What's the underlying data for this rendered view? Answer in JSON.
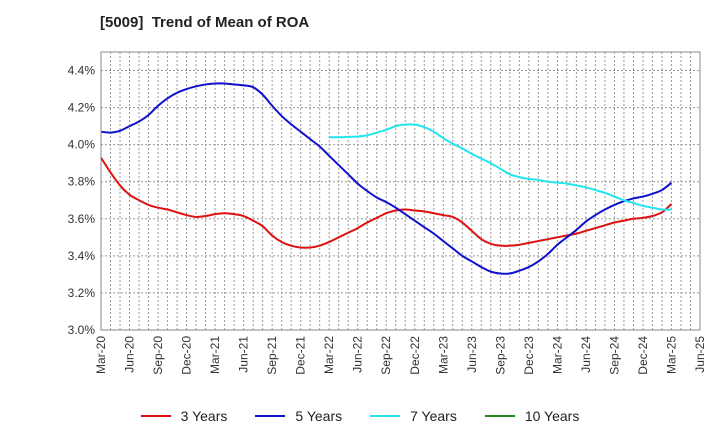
{
  "chart_data": {
    "type": "line",
    "title": "[5009]  Trend of Mean of ROA",
    "y_ticks": [
      "3.0%",
      "3.2%",
      "3.4%",
      "3.6%",
      "3.8%",
      "4.0%",
      "4.2%",
      "4.4%"
    ],
    "ylim": [
      3.0,
      4.5
    ],
    "x_ticks": [
      "Mar-20",
      "Jun-20",
      "Sep-20",
      "Dec-20",
      "Mar-21",
      "Jun-21",
      "Sep-21",
      "Dec-21",
      "Mar-22",
      "Jun-22",
      "Sep-22",
      "Dec-22",
      "Mar-23",
      "Jun-23",
      "Sep-23",
      "Dec-23",
      "Mar-24",
      "Jun-24",
      "Sep-24",
      "Dec-24",
      "Mar-25",
      "Jun-25"
    ],
    "grid": true,
    "legend_position": "bottom",
    "series": [
      {
        "name": "3 Years",
        "color": "#dd1111",
        "x": [
          "Mar-20",
          "Apr-20",
          "May-20",
          "Jun-20",
          "Jul-20",
          "Aug-20",
          "Sep-20",
          "Oct-20",
          "Nov-20",
          "Dec-20",
          "Jan-21",
          "Feb-21",
          "Mar-21",
          "Apr-21",
          "May-21",
          "Jun-21",
          "Jul-21",
          "Aug-21",
          "Sep-21",
          "Oct-21",
          "Nov-21",
          "Dec-21",
          "Jan-22",
          "Feb-22",
          "Mar-22",
          "Apr-22",
          "May-22",
          "Jun-22",
          "Jul-22",
          "Aug-22",
          "Sep-22",
          "Oct-22",
          "Nov-22",
          "Dec-22",
          "Jan-23",
          "Feb-23",
          "Mar-23",
          "Apr-23",
          "May-23",
          "Jun-23",
          "Jul-23",
          "Aug-23",
          "Sep-23",
          "Oct-23",
          "Nov-23",
          "Dec-23",
          "Jan-24",
          "Feb-24",
          "Mar-24",
          "Apr-24",
          "May-24",
          "Jun-24",
          "Jul-24",
          "Aug-24",
          "Sep-24",
          "Oct-24",
          "Nov-24",
          "Dec-24",
          "Jan-25",
          "Feb-25",
          "Mar-25"
        ],
        "values": [
          3.93,
          3.85,
          3.78,
          3.73,
          3.7,
          3.675,
          3.66,
          3.65,
          3.635,
          3.62,
          3.61,
          3.615,
          3.625,
          3.63,
          3.625,
          3.615,
          3.59,
          3.56,
          3.51,
          3.475,
          3.455,
          3.445,
          3.445,
          3.455,
          3.475,
          3.5,
          3.525,
          3.55,
          3.58,
          3.605,
          3.63,
          3.645,
          3.65,
          3.645,
          3.64,
          3.63,
          3.62,
          3.61,
          3.58,
          3.535,
          3.49,
          3.465,
          3.455,
          3.455,
          3.46,
          3.47,
          3.48,
          3.49,
          3.5,
          3.51,
          3.52,
          3.535,
          3.55,
          3.565,
          3.58,
          3.59,
          3.6,
          3.605,
          3.615,
          3.635,
          3.68
        ]
      },
      {
        "name": "5 Years",
        "color": "#1111cc",
        "x": [
          "Mar-20",
          "Apr-20",
          "May-20",
          "Jun-20",
          "Jul-20",
          "Aug-20",
          "Sep-20",
          "Oct-20",
          "Nov-20",
          "Dec-20",
          "Jan-21",
          "Feb-21",
          "Mar-21",
          "Apr-21",
          "May-21",
          "Jun-21",
          "Jul-21",
          "Aug-21",
          "Sep-21",
          "Oct-21",
          "Nov-21",
          "Dec-21",
          "Jan-22",
          "Feb-22",
          "Mar-22",
          "Apr-22",
          "May-22",
          "Jun-22",
          "Jul-22",
          "Aug-22",
          "Sep-22",
          "Oct-22",
          "Nov-22",
          "Dec-22",
          "Jan-23",
          "Feb-23",
          "Mar-23",
          "Apr-23",
          "May-23",
          "Jun-23",
          "Jul-23",
          "Aug-23",
          "Sep-23",
          "Oct-23",
          "Nov-23",
          "Dec-23",
          "Jan-24",
          "Feb-24",
          "Mar-24",
          "Apr-24",
          "May-24",
          "Jun-24",
          "Jul-24",
          "Aug-24",
          "Sep-24",
          "Oct-24",
          "Nov-24",
          "Dec-24",
          "Jan-25",
          "Feb-25",
          "Mar-25"
        ],
        "values": [
          4.07,
          4.065,
          4.075,
          4.1,
          4.125,
          4.16,
          4.21,
          4.25,
          4.28,
          4.3,
          4.315,
          4.325,
          4.33,
          4.33,
          4.325,
          4.32,
          4.31,
          4.27,
          4.21,
          4.155,
          4.11,
          4.07,
          4.03,
          3.99,
          3.94,
          3.89,
          3.84,
          3.79,
          3.75,
          3.715,
          3.69,
          3.66,
          3.625,
          3.59,
          3.555,
          3.52,
          3.48,
          3.44,
          3.4,
          3.37,
          3.34,
          3.315,
          3.305,
          3.305,
          3.32,
          3.34,
          3.37,
          3.41,
          3.46,
          3.5,
          3.54,
          3.585,
          3.62,
          3.65,
          3.675,
          3.695,
          3.71,
          3.72,
          3.735,
          3.755,
          3.795
        ]
      },
      {
        "name": "7 Years",
        "color": "#22e5ee",
        "x": [
          "Mar-22",
          "Apr-22",
          "May-22",
          "Jun-22",
          "Jul-22",
          "Aug-22",
          "Sep-22",
          "Oct-22",
          "Nov-22",
          "Dec-22",
          "Jan-23",
          "Feb-23",
          "Mar-23",
          "Apr-23",
          "May-23",
          "Jun-23",
          "Jul-23",
          "Aug-23",
          "Sep-23",
          "Oct-23",
          "Nov-23",
          "Dec-23",
          "Jan-24",
          "Feb-24",
          "Mar-24",
          "Apr-24",
          "May-24",
          "Jun-24",
          "Jul-24",
          "Aug-24",
          "Sep-24",
          "Oct-24",
          "Nov-24",
          "Dec-24",
          "Jan-25",
          "Feb-25",
          "Mar-25"
        ],
        "values": [
          4.04,
          4.04,
          4.042,
          4.044,
          4.05,
          4.065,
          4.08,
          4.1,
          4.108,
          4.108,
          4.095,
          4.07,
          4.035,
          4.005,
          3.98,
          3.95,
          3.925,
          3.9,
          3.87,
          3.84,
          3.825,
          3.815,
          3.81,
          3.8,
          3.795,
          3.79,
          3.78,
          3.77,
          3.755,
          3.74,
          3.72,
          3.7,
          3.685,
          3.67,
          3.66,
          3.65,
          3.65
        ]
      },
      {
        "name": "10 Years",
        "color": "#228822",
        "x": [],
        "values": []
      }
    ]
  }
}
